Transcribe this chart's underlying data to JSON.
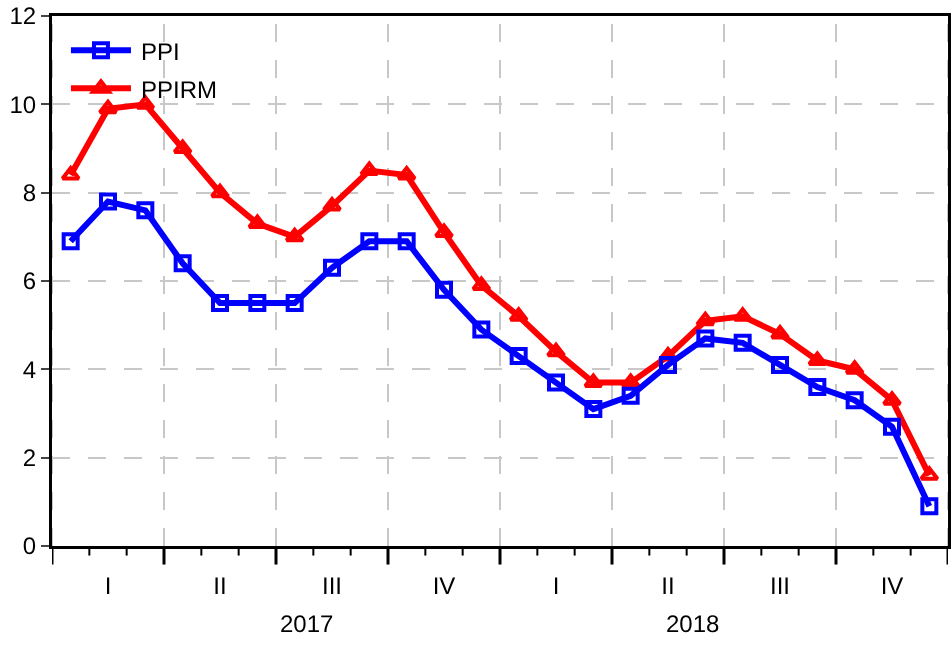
{
  "chart_data": {
    "type": "line",
    "categories": [
      null,
      "I",
      null,
      null,
      "II",
      null,
      null,
      "III",
      null,
      null,
      "IV",
      null,
      null,
      "I",
      null,
      null,
      "II",
      null,
      null,
      "III",
      null,
      null,
      "IV",
      null
    ],
    "series": [
      {
        "name": "PPI",
        "color": "#0000ff",
        "marker": "square",
        "values": [
          6.9,
          7.8,
          7.6,
          6.4,
          5.5,
          5.5,
          5.5,
          6.3,
          6.9,
          6.9,
          5.8,
          4.9,
          4.3,
          3.7,
          3.1,
          3.4,
          4.1,
          4.7,
          4.6,
          4.1,
          3.6,
          3.3,
          2.7,
          0.9
        ]
      },
      {
        "name": "PPIRM",
        "color": "#ff0000",
        "marker": "triangle",
        "values": [
          8.4,
          9.9,
          10.0,
          9.0,
          8.0,
          7.3,
          7.0,
          7.7,
          8.5,
          8.4,
          7.1,
          5.9,
          5.2,
          4.4,
          3.7,
          3.7,
          4.3,
          5.1,
          5.2,
          4.8,
          4.2,
          4.0,
          3.3,
          1.6
        ]
      }
    ],
    "ylim": [
      0,
      12
    ],
    "yticks": [
      0,
      2,
      4,
      6,
      8,
      10,
      12
    ],
    "grid": true,
    "legend": "top left",
    "line_style": "solid",
    "annotations": [
      "2017",
      "2018"
    ]
  }
}
